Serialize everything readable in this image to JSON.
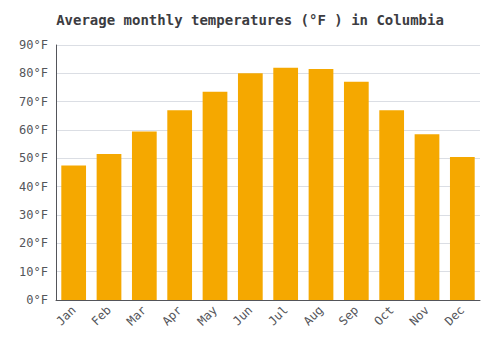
{
  "chart_data": {
    "type": "bar",
    "title": "Average monthly temperatures (°F ) in Columbia",
    "categories": [
      "Jan",
      "Feb",
      "Mar",
      "Apr",
      "May",
      "Jun",
      "Jul",
      "Aug",
      "Sep",
      "Oct",
      "Nov",
      "Dec"
    ],
    "values": [
      47.5,
      51.5,
      59.5,
      67.0,
      73.5,
      80.0,
      82.0,
      81.5,
      77.0,
      67.0,
      58.5,
      50.5
    ],
    "color": "#F5A800",
    "ylim": [
      0,
      90
    ],
    "yticks": [
      {
        "value": 0,
        "label": "0°F"
      },
      {
        "value": 10,
        "label": "10°F"
      },
      {
        "value": 20,
        "label": "20°F"
      },
      {
        "value": 30,
        "label": "30°F"
      },
      {
        "value": 40,
        "label": "40°F"
      },
      {
        "value": 50,
        "label": "50°F"
      },
      {
        "value": 60,
        "label": "60°F"
      },
      {
        "value": 70,
        "label": "70°F"
      },
      {
        "value": 80,
        "label": "80°F"
      },
      {
        "value": 90,
        "label": "90°F"
      }
    ],
    "grid": true
  }
}
